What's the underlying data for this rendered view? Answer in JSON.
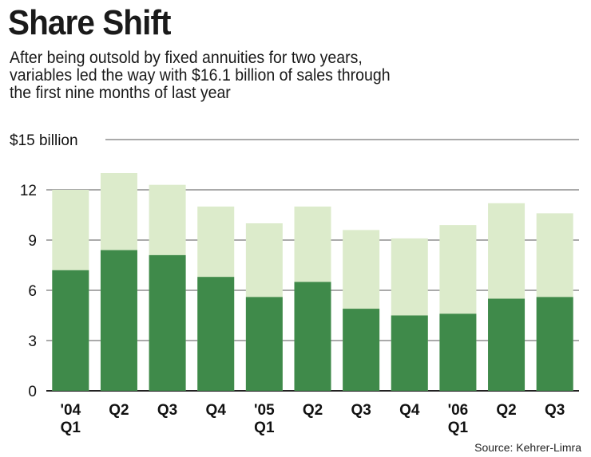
{
  "title": "Share Shift",
  "subtitle_lines": [
    "After being outsold by fixed annuities for two years,",
    "variables led the way with $16.1 billion of sales through",
    "the first nine months of last year"
  ],
  "source": "Source: Kehrer-Limra",
  "colors": {
    "variable": "#3f8a4a",
    "total": "#dcebcb",
    "grid": "#555555"
  },
  "chart_data": {
    "type": "bar",
    "stacked": true,
    "title": "Share Shift",
    "categories": [
      [
        "'04",
        "Q1"
      ],
      [
        "Q2"
      ],
      [
        "Q3"
      ],
      [
        "Q4"
      ],
      [
        "'05",
        "Q1"
      ],
      [
        "Q2"
      ],
      [
        "Q3"
      ],
      [
        "Q4"
      ],
      [
        "'06",
        "Q1"
      ],
      [
        "Q2"
      ],
      [
        "Q3"
      ]
    ],
    "series": [
      {
        "values": [
          7.2,
          8.4,
          8.1,
          6.8,
          5.6,
          6.5,
          4.9,
          4.5,
          4.6,
          5.5,
          5.6
        ]
      },
      {
        "values": [
          4.8,
          4.6,
          4.2,
          4.2,
          4.4,
          4.5,
          4.7,
          4.6,
          5.3,
          5.7,
          5.0
        ]
      }
    ],
    "totals": [
      12.0,
      13.0,
      12.3,
      11.0,
      10.0,
      11.0,
      9.6,
      9.1,
      9.9,
      11.2,
      10.6
    ],
    "yticks": [
      {
        "value": 0,
        "label": "0"
      },
      {
        "value": 3,
        "label": "3"
      },
      {
        "value": 6,
        "label": "6"
      },
      {
        "value": 9,
        "label": "9"
      },
      {
        "value": 12,
        "label": "12"
      },
      {
        "value": 15,
        "label": "$15 billion"
      }
    ],
    "ylim": [
      0,
      15
    ],
    "grid": true,
    "legend": "none"
  }
}
